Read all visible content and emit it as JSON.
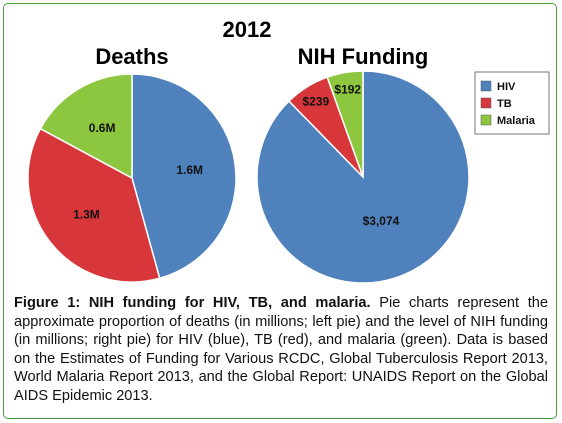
{
  "colors": {
    "hiv": "#4f81bd",
    "tb": "#d7373a",
    "malaria": "#8dc63f",
    "border": "#4a9a3a"
  },
  "chart_data": {
    "type": "pie",
    "title": "2012",
    "charts": [
      {
        "title": "Deaths",
        "categories": [
          "HIV",
          "TB",
          "Malaria"
        ],
        "values": [
          1.6,
          1.3,
          0.6
        ],
        "labels": [
          "1.6M",
          "1.3M",
          "0.6M"
        ]
      },
      {
        "title": "NIH Funding",
        "categories": [
          "HIV",
          "TB",
          "Malaria"
        ],
        "values": [
          3074,
          239,
          192
        ],
        "labels": [
          "$3,074",
          "$239",
          "$192"
        ]
      }
    ],
    "legend": {
      "position": "right",
      "entries": [
        {
          "name": "HIV",
          "color": "#4f81bd"
        },
        {
          "name": "TB",
          "color": "#d7373a"
        },
        {
          "name": "Malaria",
          "color": "#8dc63f"
        }
      ]
    }
  },
  "caption": {
    "bold": "Figure 1: NIH funding for HIV, TB, and malaria.",
    "text": " Pie charts represent the approximate proportion of deaths (in millions; left pie) and the level of NIH funding (in millions; right pie) for HIV (blue), TB (red), and malaria (green). Data is based on the Estimates of Funding for Various RCDC, Global Tuberculosis Report 2013, World Malaria Report 2013, and the Global Report: UNAIDS Report on the Global AIDS Epidemic 2013."
  }
}
